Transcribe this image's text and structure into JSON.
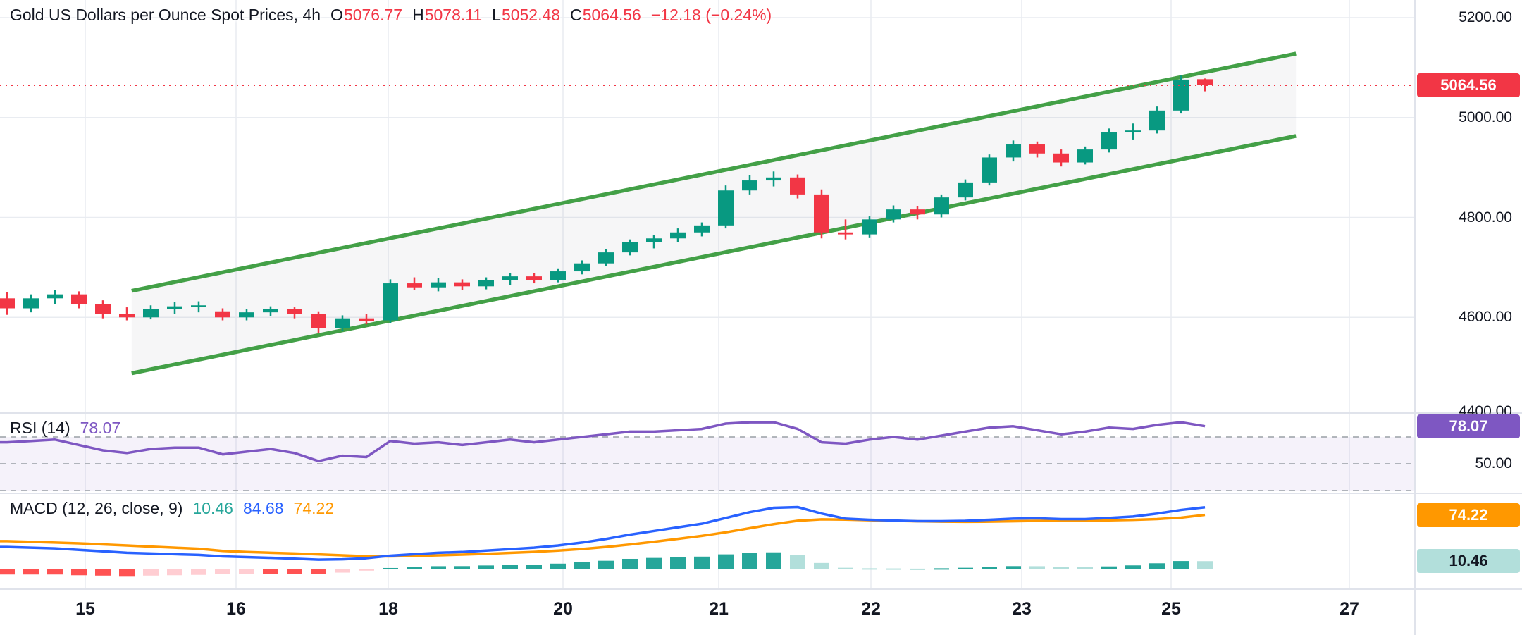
{
  "header": {
    "title": "Gold US Dollars per Ounce Spot Prices, 4h",
    "ohlc": {
      "o_label": "O",
      "o": "5076.77",
      "h_label": "H",
      "h": "5078.11",
      "l_label": "L",
      "l": "5052.48",
      "c_label": "C",
      "c": "5064.56",
      "change": "−12.18 (−0.24%)"
    }
  },
  "price_axis": {
    "labels": [
      "5200.00",
      "5000.00",
      "4800.00",
      "4600.00",
      "4400.00"
    ],
    "last_price_badge": "5064.56"
  },
  "rsi_panel": {
    "label": "RSI (14)",
    "value": "78.07",
    "badge": "78.07",
    "mid_level_label": "50.00"
  },
  "macd_panel": {
    "label": "MACD (12, 26, close, 9)",
    "hist_value": "10.46",
    "macd_value": "84.68",
    "signal_value": "74.22",
    "signal_badge": "74.22",
    "hist_badge": "10.46"
  },
  "time_axis": {
    "labels": [
      "15",
      "16",
      "18",
      "20",
      "21",
      "22",
      "23",
      "25",
      "27"
    ]
  },
  "colors": {
    "up": "#089981",
    "down": "#f23645",
    "grid": "#e9ecf1",
    "separator": "#e0e3eb",
    "text": "#131722",
    "channel": "#43a047",
    "channel_fill": "rgba(130,133,144,0.07)",
    "rsi_line": "#7e57c2",
    "rsi_band": "rgba(126,87,194,0.08)",
    "rsi_dash": "#9aa0a6",
    "macd_line": "#2962ff",
    "signal_line": "#ff9800",
    "hist_up_grow": "#26a69a",
    "hist_up_fall": "#b2dfdb",
    "hist_dn_grow": "#ff5252",
    "hist_dn_fall": "#ffcdd2",
    "rsi_badge_bg": "#7e57c2",
    "hist_badge_text": "#131722"
  },
  "chart_data": {
    "type": "candlestick",
    "title": "Gold US Dollars per Ounce Spot Prices, 4h",
    "timeframe": "4h",
    "ylim": [
      4400,
      5200
    ],
    "price_ticks": [
      5200,
      5000,
      4800,
      4600,
      4400
    ],
    "x_tick_labels": [
      "15",
      "16",
      "18",
      "20",
      "21",
      "22",
      "23",
      "25",
      "27"
    ],
    "last": {
      "open": 5076.77,
      "high": 5078.11,
      "low": 5052.48,
      "close": 5064.56,
      "change": -12.18,
      "change_pct": -0.24
    },
    "candles": [
      [
        4638,
        4650,
        4605,
        4618
      ],
      [
        4618,
        4646,
        4610,
        4638
      ],
      [
        4638,
        4654,
        4626,
        4646
      ],
      [
        4646,
        4652,
        4618,
        4626
      ],
      [
        4626,
        4634,
        4598,
        4606
      ],
      [
        4606,
        4620,
        4594,
        4600
      ],
      [
        4600,
        4624,
        4596,
        4616
      ],
      [
        4616,
        4630,
        4606,
        4622
      ],
      [
        4622,
        4632,
        4610,
        4624
      ],
      [
        4612,
        4618,
        4594,
        4600
      ],
      [
        4600,
        4616,
        4594,
        4610
      ],
      [
        4610,
        4622,
        4602,
        4616
      ],
      [
        4616,
        4620,
        4598,
        4606
      ],
      [
        4606,
        4612,
        4568,
        4578
      ],
      [
        4578,
        4604,
        4572,
        4598
      ],
      [
        4598,
        4606,
        4586,
        4592
      ],
      [
        4594,
        4676,
        4588,
        4668
      ],
      [
        4668,
        4680,
        4654,
        4660
      ],
      [
        4660,
        4678,
        4652,
        4670
      ],
      [
        4670,
        4676,
        4654,
        4662
      ],
      [
        4662,
        4680,
        4656,
        4674
      ],
      [
        4674,
        4688,
        4664,
        4682
      ],
      [
        4682,
        4688,
        4668,
        4674
      ],
      [
        4674,
        4698,
        4670,
        4692
      ],
      [
        4692,
        4714,
        4686,
        4708
      ],
      [
        4708,
        4736,
        4702,
        4730
      ],
      [
        4730,
        4756,
        4724,
        4750
      ],
      [
        4750,
        4764,
        4738,
        4758
      ],
      [
        4758,
        4778,
        4750,
        4770
      ],
      [
        4770,
        4790,
        4762,
        4784
      ],
      [
        4784,
        4864,
        4778,
        4854
      ],
      [
        4854,
        4884,
        4846,
        4874
      ],
      [
        4874,
        4892,
        4862,
        4880
      ],
      [
        4880,
        4886,
        4838,
        4846
      ],
      [
        4846,
        4856,
        4758,
        4770
      ],
      [
        4770,
        4796,
        4756,
        4766
      ],
      [
        4766,
        4802,
        4760,
        4796
      ],
      [
        4796,
        4824,
        4790,
        4816
      ],
      [
        4816,
        4822,
        4796,
        4806
      ],
      [
        4806,
        4846,
        4800,
        4840
      ],
      [
        4840,
        4876,
        4834,
        4870
      ],
      [
        4870,
        4926,
        4864,
        4920
      ],
      [
        4920,
        4954,
        4912,
        4946
      ],
      [
        4946,
        4952,
        4920,
        4928
      ],
      [
        4928,
        4936,
        4902,
        4910
      ],
      [
        4910,
        4942,
        4906,
        4936
      ],
      [
        4936,
        4978,
        4930,
        4970
      ],
      [
        4970,
        4988,
        4956,
        4974
      ],
      [
        4974,
        5022,
        4968,
        5014
      ],
      [
        5014,
        5084,
        5008,
        5076
      ],
      [
        5076.77,
        5078.11,
        5052.48,
        5064.56
      ]
    ],
    "channel": {
      "type": "parallel-channel",
      "x1": 5.2,
      "upper_p1": 4653,
      "lower_p1": 4488,
      "x2": 53.8,
      "upper_p2": 5128,
      "lower_p2": 4963
    },
    "rsi": {
      "period": 14,
      "last": 78.07,
      "levels": [
        70,
        50,
        30
      ],
      "values": [
        66,
        67,
        68,
        64,
        60,
        58,
        61,
        62,
        62,
        57,
        59,
        61,
        58,
        52,
        56,
        55,
        67,
        65,
        66,
        64,
        66,
        68,
        66,
        68,
        70,
        72,
        74,
        74,
        75,
        76,
        80,
        81,
        81,
        76,
        66,
        65,
        68,
        70,
        68,
        71,
        74,
        77,
        78,
        75,
        72,
        74,
        77,
        76,
        79,
        81,
        78.07
      ]
    },
    "macd": {
      "fast": 12,
      "slow": 26,
      "source": "close",
      "signal_period": 9,
      "macd_last": 84.68,
      "signal_last": 74.22,
      "hist_last": 10.46,
      "macd": [
        30,
        29,
        28,
        26,
        24,
        22,
        21,
        20,
        19,
        17,
        16,
        15,
        13.8,
        12.5,
        13,
        14.5,
        18,
        20,
        22,
        23,
        25,
        27,
        29,
        32,
        36,
        41,
        47,
        52,
        57,
        62,
        70,
        78,
        84,
        85,
        76,
        69,
        67.5,
        66.5,
        65.5,
        65.5,
        66,
        67.5,
        69,
        69.5,
        68.5,
        68.5,
        70,
        72,
        76,
        81,
        84.68
      ],
      "signal": [
        38,
        37,
        36,
        35,
        33.5,
        32,
        30.5,
        29,
        27.5,
        24.5,
        23,
        22,
        21,
        19.8,
        18.4,
        17.2,
        17,
        17.6,
        18.5,
        19.4,
        20.5,
        21.8,
        23.2,
        25,
        27.2,
        30,
        33.4,
        37.1,
        41.1,
        45.3,
        50.2,
        55.8,
        61.4,
        66.1,
        68.1,
        67.7,
        66.9,
        66.1,
        65.4,
        64.9,
        64.7,
        64.9,
        65.4,
        66,
        66.3,
        66.5,
        66.8,
        67.4,
        68.5,
        70.4,
        74.22
      ]
    }
  }
}
